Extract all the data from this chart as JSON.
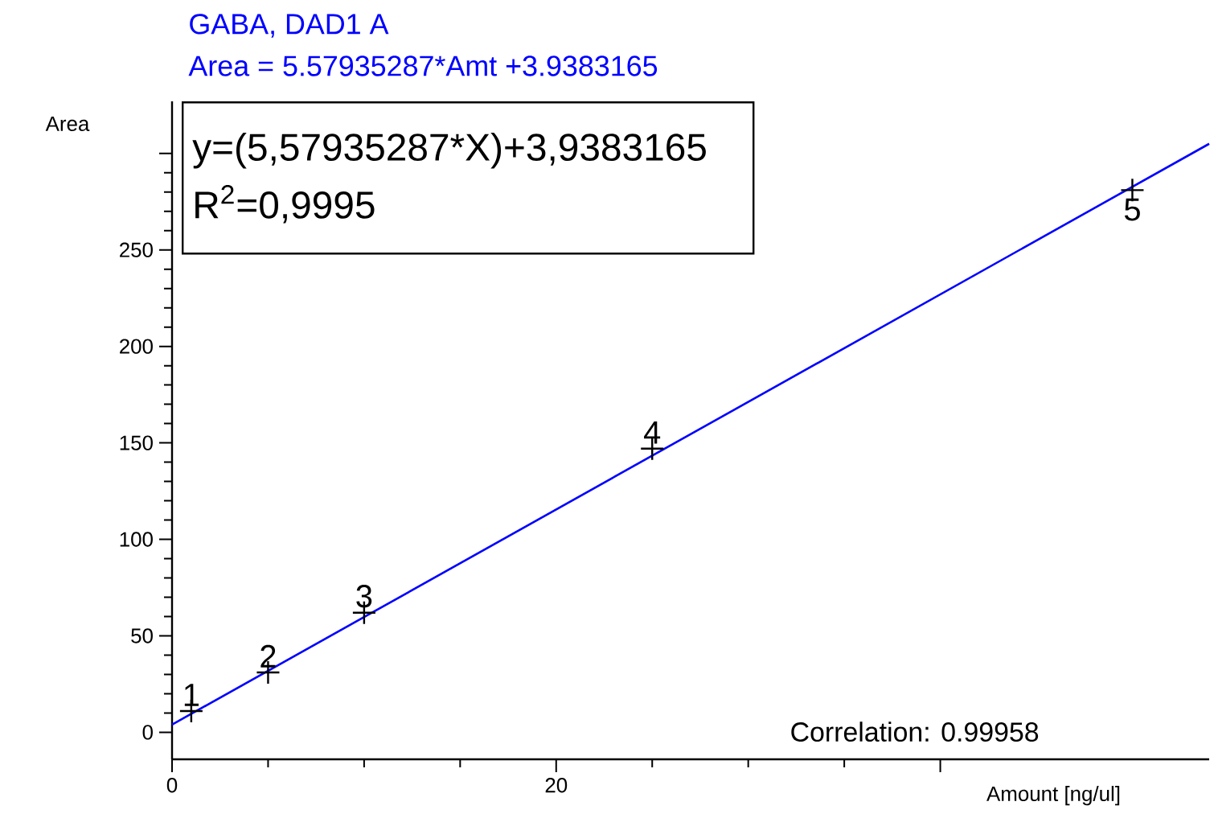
{
  "chart_data": {
    "type": "scatter",
    "title": "GABA, DAD1 A",
    "subtitle": "Area = 5.57935287*Amt +3.9383165",
    "xlabel": "Amount [ng/ul]",
    "ylabel": "Area",
    "series": [
      {
        "color": "#000000",
        "x": [
          1,
          5,
          10,
          25,
          50
        ],
        "values": [
          11,
          31,
          62,
          147,
          281
        ],
        "marker": "cross"
      },
      {
        "type": "line",
        "color": "#0000ff",
        "x": [
          0,
          54
        ],
        "values": [
          4,
          305
        ],
        "marker": "none"
      }
    ],
    "xlim": [
      0,
      54
    ],
    "xticks": [
      0,
      20,
      {
        "value": 40,
        "label": null
      }
    ],
    "ylim": [
      -14,
      327
    ],
    "yticks": [
      0,
      50,
      100,
      150,
      200,
      250,
      {
        "value": 300,
        "label": null
      }
    ],
    "grid": false,
    "annotations": [
      {
        "text": "1",
        "x": 1,
        "y": 11
      },
      {
        "text": "2",
        "x": 5,
        "y": 31
      },
      {
        "text": "3",
        "x": 10,
        "y": 62
      },
      {
        "text": "4",
        "x": 25,
        "y": 147
      },
      {
        "text": "5",
        "x": 50,
        "y": 281
      },
      "y=(5,57935287*X)+3,9383165",
      "R$^{2}$=0,9995",
      "Correlation: 0.99958"
    ]
  }
}
